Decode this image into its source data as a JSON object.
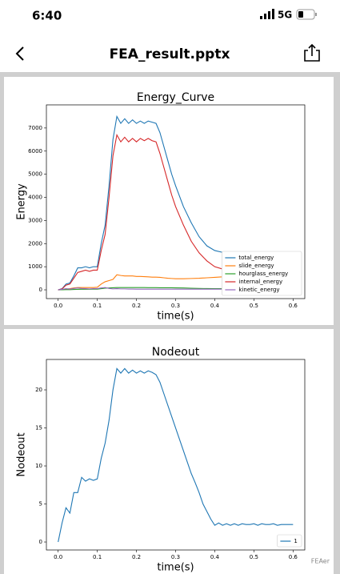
{
  "status_bar": {
    "time": "6:40",
    "network": "5G"
  },
  "header": {
    "title": "FEA_result.pptx"
  },
  "watermark": "FEAer",
  "chart_data": [
    {
      "type": "line",
      "title": "Energy_Curve",
      "x_label": "time(s)",
      "y_label": "Energy",
      "x": [
        0,
        0.01,
        0.02,
        0.03,
        0.04,
        0.05,
        0.06,
        0.07,
        0.08,
        0.09,
        0.1,
        0.11,
        0.12,
        0.13,
        0.14,
        0.15,
        0.16,
        0.17,
        0.18,
        0.19,
        0.2,
        0.21,
        0.22,
        0.23,
        0.24,
        0.25,
        0.26,
        0.27,
        0.28,
        0.29,
        0.3,
        0.32,
        0.34,
        0.36,
        0.38,
        0.4,
        0.42,
        0.44,
        0.46,
        0.48,
        0.5,
        0.52,
        0.54,
        0.56,
        0.58,
        0.6
      ],
      "series": [
        {
          "name": "total_energy",
          "color": "#1f77b4",
          "values": [
            0,
            50,
            250,
            300,
            600,
            950,
            950,
            1000,
            950,
            1000,
            1000,
            2000,
            2800,
            4500,
            6500,
            7500,
            7200,
            7400,
            7200,
            7350,
            7200,
            7300,
            7200,
            7300,
            7250,
            7200,
            6800,
            6200,
            5600,
            5000,
            4500,
            3600,
            2900,
            2300,
            1900,
            1700,
            1620,
            1600,
            1600,
            1600,
            1600,
            1600,
            1600,
            1600,
            1600,
            1600
          ]
        },
        {
          "name": "slide_energy",
          "color": "#ff7f0e",
          "values": [
            0,
            5,
            30,
            50,
            80,
            100,
            100,
            100,
            100,
            100,
            110,
            250,
            350,
            400,
            450,
            650,
            620,
            600,
            600,
            600,
            580,
            580,
            570,
            560,
            550,
            550,
            540,
            520,
            500,
            490,
            480,
            480,
            490,
            500,
            520,
            540,
            560,
            580,
            600,
            610,
            620,
            620,
            620,
            620,
            620,
            620
          ]
        },
        {
          "name": "hourglass_energy",
          "color": "#2ca02c",
          "values": [
            0,
            2,
            5,
            8,
            15,
            20,
            25,
            25,
            25,
            30,
            30,
            50,
            70,
            80,
            90,
            100,
            100,
            100,
            100,
            100,
            100,
            100,
            100,
            95,
            95,
            95,
            90,
            90,
            90,
            90,
            85,
            80,
            70,
            60,
            55,
            50,
            50,
            50,
            50,
            50,
            50,
            50,
            50,
            50,
            50,
            50
          ]
        },
        {
          "name": "internal_energy",
          "color": "#d62728",
          "values": [
            0,
            40,
            200,
            250,
            500,
            750,
            800,
            850,
            800,
            850,
            850,
            1700,
            2400,
            4000,
            5800,
            6700,
            6400,
            6600,
            6400,
            6550,
            6400,
            6550,
            6450,
            6550,
            6450,
            6400,
            5900,
            5300,
            4700,
            4100,
            3600,
            2800,
            2100,
            1600,
            1250,
            1000,
            900,
            880,
            870,
            870,
            870,
            870,
            870,
            870,
            870,
            870
          ]
        },
        {
          "name": "kinetic_energy",
          "color": "#9467bd",
          "values": [
            0,
            20,
            50,
            30,
            60,
            80,
            60,
            50,
            40,
            50,
            50,
            80,
            100,
            60,
            40,
            50,
            40,
            40,
            35,
            35,
            30,
            30,
            30,
            30,
            30,
            30,
            30,
            30,
            30,
            30,
            30,
            30,
            30,
            30,
            30,
            30,
            30,
            30,
            30,
            30,
            30,
            30,
            30,
            30,
            30,
            30
          ]
        }
      ],
      "xlim": [
        -0.03,
        0.63
      ],
      "ylim": [
        -380,
        8000
      ],
      "xticks": [
        {
          "value": 0,
          "label": "0.0"
        },
        0.1,
        0.2,
        0.3,
        0.4,
        0.5,
        0.6
      ],
      "yticks": [
        0,
        1000,
        2000,
        3000,
        4000,
        5000,
        6000,
        7000
      ],
      "legend": "lower right"
    },
    {
      "type": "line",
      "title": "Nodeout",
      "x_label": "time(s)",
      "y_label": "Nodeout",
      "x": [
        0,
        0.01,
        0.02,
        0.03,
        0.04,
        0.05,
        0.06,
        0.07,
        0.08,
        0.09,
        0.1,
        0.11,
        0.12,
        0.13,
        0.14,
        0.15,
        0.16,
        0.17,
        0.18,
        0.19,
        0.2,
        0.21,
        0.22,
        0.23,
        0.24,
        0.25,
        0.26,
        0.27,
        0.28,
        0.29,
        0.3,
        0.31,
        0.32,
        0.33,
        0.34,
        0.35,
        0.36,
        0.37,
        0.38,
        0.39,
        0.4,
        0.41,
        0.42,
        0.43,
        0.44,
        0.45,
        0.46,
        0.47,
        0.48,
        0.49,
        0.5,
        0.51,
        0.52,
        0.53,
        0.54,
        0.55,
        0.56,
        0.57,
        0.58,
        0.59,
        0.6
      ],
      "series": [
        {
          "name": "1",
          "color": "#1f77b4",
          "values": [
            0,
            2.5,
            4.5,
            3.8,
            6.5,
            6.5,
            8.5,
            8,
            8.3,
            8.1,
            8.3,
            11,
            13,
            16,
            20,
            22.8,
            22.2,
            22.8,
            22.2,
            22.6,
            22.2,
            22.5,
            22.2,
            22.5,
            22.3,
            22,
            21,
            19.5,
            18,
            16.5,
            15,
            13.5,
            12,
            10.5,
            9,
            7.8,
            6.5,
            5,
            4,
            3,
            2.2,
            2.5,
            2.2,
            2.4,
            2.2,
            2.4,
            2.2,
            2.4,
            2.3,
            2.3,
            2.4,
            2.2,
            2.4,
            2.3,
            2.3,
            2.4,
            2.2,
            2.3,
            2.3,
            2.3,
            2.3
          ]
        }
      ],
      "xlim": [
        -0.03,
        0.63
      ],
      "ylim": [
        -1.05,
        24
      ],
      "xticks": [
        {
          "value": 0,
          "label": "0.0"
        },
        0.1,
        0.2,
        0.3,
        0.4,
        0.5,
        0.6
      ],
      "yticks": [
        0,
        5,
        10,
        15,
        20
      ],
      "legend": "lower right"
    }
  ]
}
